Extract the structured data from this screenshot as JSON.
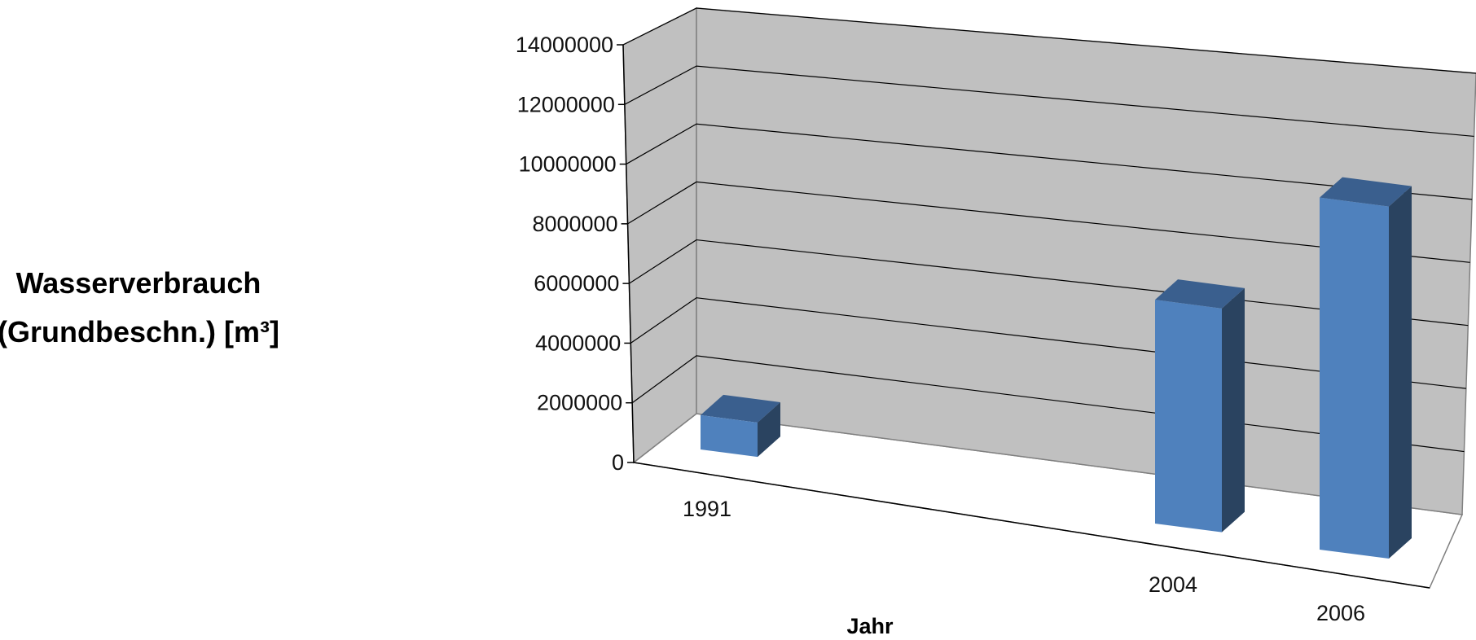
{
  "chart_data": {
    "type": "bar",
    "categories": [
      "1991",
      "2004",
      "2006"
    ],
    "values": [
      1150000,
      7500000,
      11800000
    ],
    "ylabel_lines": [
      "Wasserverbrauch",
      "(Grundbeschn.) [m³]"
    ],
    "xlabel": "Jahr",
    "yticks": [
      "0",
      "2000000",
      "4000000",
      "6000000",
      "8000000",
      "10000000",
      "12000000",
      "14000000"
    ],
    "ylim": [
      0,
      14000000
    ],
    "grid": true,
    "style": "3d-column",
    "colors": {
      "bar_front": "#4F81BD",
      "bar_top": "#3A5F8E",
      "bar_side": "#2A4360",
      "back_wall": "#C0C0C0",
      "side_wall": "#C0C0C0",
      "floor": "#FFFFFF"
    }
  }
}
